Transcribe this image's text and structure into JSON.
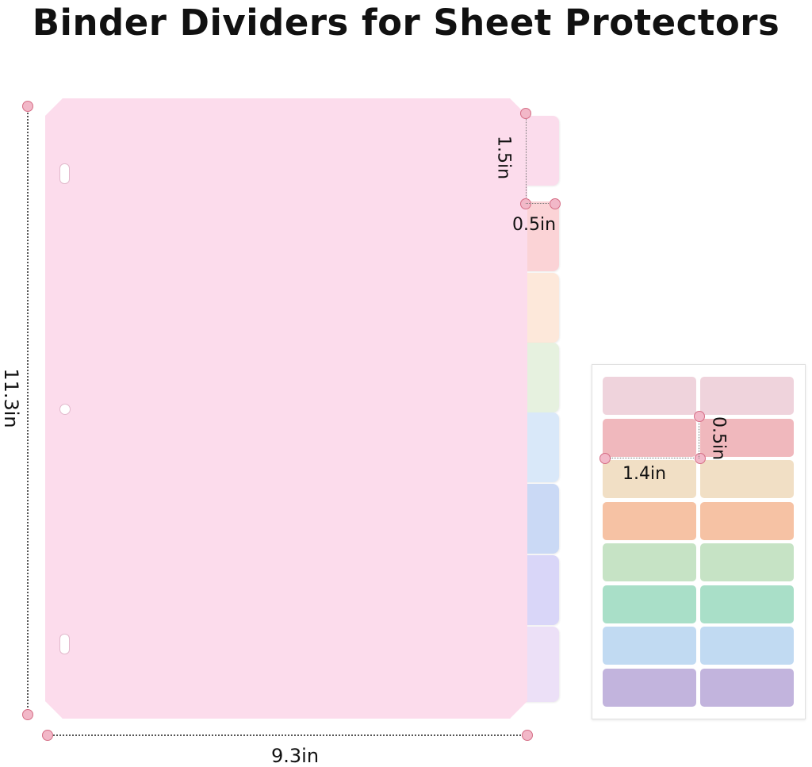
{
  "title": "Binder Dividers for Sheet Protectors",
  "dimensions": {
    "height": "11.3in",
    "width": "9.3in",
    "tab_height": "1.5in",
    "tab_width": "0.5in",
    "label_width": "1.4in",
    "label_height": "0.5in"
  },
  "colors": {
    "sheet": "#fcdcec",
    "tabs": [
      "#fbdcec",
      "#fbd3d6",
      "#fde8da",
      "#e6f1df",
      "#d9e8f9",
      "#cad9f5",
      "#d9d6f8",
      "#ece0f7"
    ],
    "label_rows": [
      "#efd3dc",
      "#f0b8bd",
      "#f1dfc5",
      "#f6c2a4",
      "#c6e3c5",
      "#a9dfc8",
      "#c1daf2",
      "#c2b4dd"
    ],
    "marker": "#f2b8c8"
  }
}
